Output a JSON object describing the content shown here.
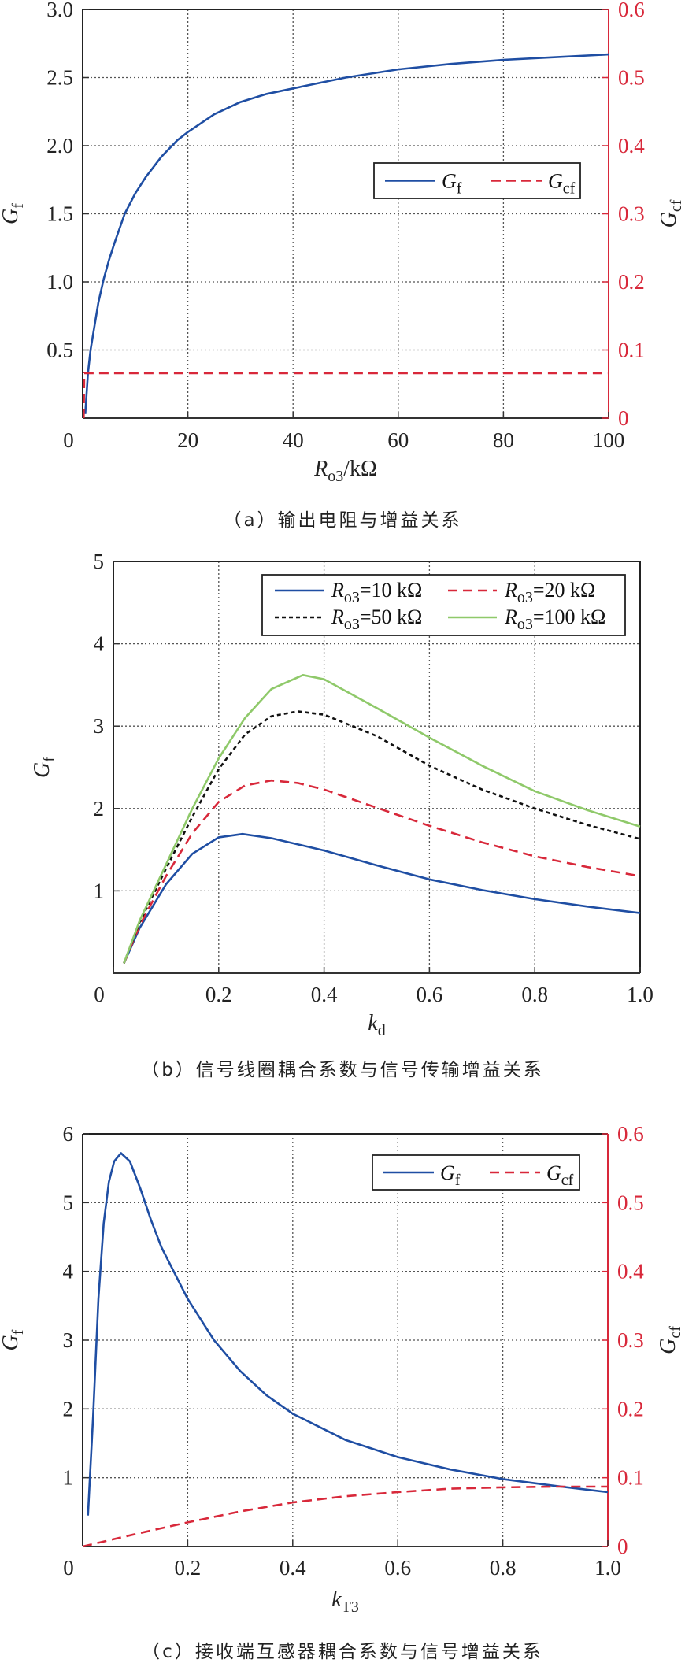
{
  "captions": {
    "a": "（a）输出电阻与增益关系",
    "b": "（b）信号线圈耦合系数与信号传输增益关系",
    "c": "（c）接收端互感器耦合系数与信号增益关系"
  },
  "colors": {
    "blue": "#1f4ea3",
    "red": "#d8283a",
    "black": "#111111",
    "green": "#8fc96a",
    "right_axis": "#d8283a",
    "grid": "#555555"
  },
  "chart_data": [
    {
      "id": "a",
      "type": "line",
      "title": "（a）输出电阻与增益关系",
      "xlabel": "R_o3/kΩ",
      "xlabel_main": "R",
      "xlabel_sub": "o3",
      "xlabel_tail": "/kΩ",
      "ylabel": "G_f",
      "ylabel_right": "G_cf",
      "xlim": [
        0,
        100
      ],
      "ylim": [
        0,
        3.0
      ],
      "ylim_right": [
        0,
        0.6
      ],
      "xticks": [
        "0",
        "20",
        "40",
        "60",
        "80",
        "100"
      ],
      "xtick_values": [
        0,
        20,
        40,
        60,
        80,
        100
      ],
      "yticks": [
        "0.5",
        "1.0",
        "1.5",
        "2.0",
        "2.5",
        "3.0"
      ],
      "ytick_values": [
        0.5,
        1.0,
        1.5,
        2.0,
        2.5,
        3.0
      ],
      "yticks_right": [
        "0",
        "0.1",
        "0.2",
        "0.3",
        "0.4",
        "0.5",
        "0.6"
      ],
      "ytick_right_values": [
        0,
        0.1,
        0.2,
        0.3,
        0.4,
        0.5,
        0.6
      ],
      "grid": true,
      "legend": {
        "position": "center-right",
        "entries": [
          "G_f",
          "G_cf"
        ]
      },
      "series": [
        {
          "name": "G_f",
          "axis": "left",
          "style": "solid",
          "color": "#1f4ea3",
          "x": [
            0.5,
            1,
            1.5,
            2,
            3,
            4,
            5,
            6,
            8,
            10,
            12,
            15,
            18,
            20,
            25,
            30,
            35,
            40,
            45,
            50,
            60,
            70,
            80,
            90,
            100
          ],
          "y": [
            0.03,
            0.33,
            0.5,
            0.62,
            0.85,
            1.02,
            1.16,
            1.28,
            1.5,
            1.65,
            1.77,
            1.92,
            2.04,
            2.1,
            2.23,
            2.32,
            2.38,
            2.42,
            2.46,
            2.5,
            2.56,
            2.6,
            2.63,
            2.65,
            2.67
          ]
        },
        {
          "name": "G_cf",
          "axis": "right",
          "style": "dashed",
          "color": "#d8283a",
          "x": [
            0.2,
            0.3,
            0.6,
            1,
            10,
            20,
            40,
            60,
            80,
            100
          ],
          "y": [
            0.0,
            0.066,
            0.066,
            0.066,
            0.066,
            0.066,
            0.066,
            0.066,
            0.066,
            0.066
          ]
        }
      ]
    },
    {
      "id": "b",
      "type": "line",
      "title": "（b）信号线圈耦合系数与信号传输增益关系",
      "xlabel": "k_d",
      "xlabel_main": "k",
      "xlabel_sub": "d",
      "xlabel_tail": "",
      "ylabel": "G_f",
      "xlim": [
        0,
        1.0
      ],
      "ylim": [
        0,
        5
      ],
      "xticks": [
        "0",
        "0.2",
        "0.4",
        "0.6",
        "0.8",
        "1.0"
      ],
      "xtick_values": [
        0,
        0.2,
        0.4,
        0.6,
        0.8,
        1.0
      ],
      "yticks": [
        "1",
        "2",
        "3",
        "4",
        "5"
      ],
      "ytick_values": [
        1,
        2,
        3,
        4,
        5
      ],
      "grid": true,
      "legend": {
        "position": "upper-right",
        "columns": 2,
        "entries": [
          "R_o3=10 kΩ",
          "R_o3=20 kΩ",
          "R_o3=50 kΩ",
          "R_o3=100 kΩ"
        ]
      },
      "series": [
        {
          "name": "R_o3=10 kΩ",
          "label_main": "R",
          "label_sub": "o3",
          "label_tail": "=10 kΩ",
          "style": "solid",
          "color": "#1f4ea3",
          "x": [
            0.02,
            0.05,
            0.1,
            0.15,
            0.2,
            0.245,
            0.3,
            0.4,
            0.5,
            0.6,
            0.7,
            0.8,
            0.9,
            1.0
          ],
          "y": [
            0.12,
            0.55,
            1.08,
            1.45,
            1.65,
            1.69,
            1.64,
            1.49,
            1.31,
            1.14,
            1.01,
            0.9,
            0.81,
            0.73
          ]
        },
        {
          "name": "R_o3=20 kΩ",
          "label_main": "R",
          "label_sub": "o3",
          "label_tail": "=20 kΩ",
          "style": "dashed",
          "color": "#d8283a",
          "x": [
            0.02,
            0.05,
            0.1,
            0.15,
            0.2,
            0.25,
            0.3,
            0.35,
            0.4,
            0.5,
            0.6,
            0.7,
            0.8,
            0.9,
            1.0
          ],
          "y": [
            0.12,
            0.58,
            1.18,
            1.7,
            2.08,
            2.28,
            2.34,
            2.31,
            2.23,
            2.01,
            1.79,
            1.59,
            1.42,
            1.29,
            1.18
          ]
        },
        {
          "name": "R_o3=50 kΩ",
          "label_main": "R",
          "label_sub": "o3",
          "label_tail": "=50 kΩ",
          "style": "dotted",
          "color": "#111111",
          "x": [
            0.02,
            0.05,
            0.1,
            0.15,
            0.2,
            0.25,
            0.3,
            0.35,
            0.4,
            0.5,
            0.6,
            0.7,
            0.8,
            0.9,
            1.0
          ],
          "y": [
            0.12,
            0.62,
            1.27,
            1.9,
            2.48,
            2.9,
            3.12,
            3.18,
            3.14,
            2.88,
            2.52,
            2.23,
            2.0,
            1.8,
            1.63
          ]
        },
        {
          "name": "R_o3=100 kΩ",
          "label_main": "R",
          "label_sub": "o3",
          "label_tail": "=100 kΩ",
          "style": "solid",
          "color": "#8fc96a",
          "x": [
            0.02,
            0.05,
            0.1,
            0.15,
            0.2,
            0.25,
            0.3,
            0.36,
            0.4,
            0.5,
            0.6,
            0.7,
            0.8,
            0.9,
            1.0
          ],
          "y": [
            0.12,
            0.64,
            1.32,
            2.0,
            2.61,
            3.1,
            3.45,
            3.62,
            3.57,
            3.22,
            2.86,
            2.52,
            2.21,
            1.98,
            1.78
          ]
        }
      ]
    },
    {
      "id": "c",
      "type": "line",
      "title": "（c）接收端互感器耦合系数与信号增益关系",
      "xlabel": "k_T3",
      "xlabel_main": "k",
      "xlabel_sub": "T3",
      "xlabel_tail": "",
      "ylabel": "G_f",
      "ylabel_right": "G_cf",
      "xlim": [
        0,
        1.0
      ],
      "ylim": [
        0,
        6
      ],
      "ylim_right": [
        0,
        0.6
      ],
      "xticks": [
        "0",
        "0.2",
        "0.4",
        "0.6",
        "0.8",
        "1.0"
      ],
      "xtick_values": [
        0,
        0.2,
        0.4,
        0.6,
        0.8,
        1.0
      ],
      "yticks": [
        "1",
        "2",
        "3",
        "4",
        "5",
        "6"
      ],
      "ytick_values": [
        1,
        2,
        3,
        4,
        5,
        6
      ],
      "yticks_right": [
        "0",
        "0.1",
        "0.2",
        "0.3",
        "0.4",
        "0.5",
        "0.6"
      ],
      "ytick_right_values": [
        0,
        0.1,
        0.2,
        0.3,
        0.4,
        0.5,
        0.6
      ],
      "grid": true,
      "legend": {
        "position": "upper-right",
        "entries": [
          "G_f",
          "G_cf"
        ]
      },
      "series": [
        {
          "name": "G_f",
          "axis": "left",
          "style": "solid",
          "color": "#1f4ea3",
          "x": [
            0.01,
            0.02,
            0.03,
            0.04,
            0.05,
            0.06,
            0.073,
            0.09,
            0.11,
            0.13,
            0.15,
            0.2,
            0.25,
            0.3,
            0.35,
            0.4,
            0.5,
            0.6,
            0.7,
            0.8,
            0.9,
            1.0
          ],
          "y": [
            0.45,
            1.9,
            3.6,
            4.7,
            5.3,
            5.6,
            5.72,
            5.6,
            5.2,
            4.75,
            4.35,
            3.6,
            3.0,
            2.55,
            2.2,
            1.93,
            1.55,
            1.3,
            1.12,
            0.98,
            0.88,
            0.79
          ]
        },
        {
          "name": "G_cf",
          "axis": "right",
          "style": "dashed",
          "color": "#d8283a",
          "x": [
            0.0,
            0.1,
            0.2,
            0.3,
            0.4,
            0.5,
            0.6,
            0.7,
            0.8,
            0.9,
            1.0
          ],
          "y": [
            0.0,
            0.018,
            0.035,
            0.051,
            0.064,
            0.073,
            0.079,
            0.084,
            0.086,
            0.087,
            0.087
          ]
        }
      ]
    }
  ]
}
